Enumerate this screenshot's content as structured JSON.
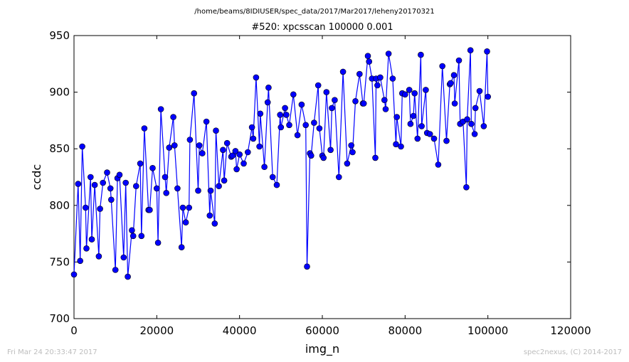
{
  "header": {
    "file_path": "/home/beams/8IDIUSER/spec_data/2017/Mar2017/leheny20170321"
  },
  "footer": {
    "timestamp": "Fri Mar 24 20:33:47 2017",
    "credit": "spec2nexus, (C) 2014-2017"
  },
  "chart_data": {
    "type": "line",
    "title": "#520: xpcsscan 100000 0.001",
    "xlabel": "img_n",
    "ylabel": "ccdc",
    "xlim": [
      0,
      120000
    ],
    "ylim": [
      700,
      950
    ],
    "xticks": [
      "0",
      "20000",
      "40000",
      "60000",
      "80000",
      "100000",
      "120000"
    ],
    "yticks": [
      "700",
      "750",
      "800",
      "850",
      "900",
      "950"
    ],
    "grid": false,
    "legend": "none",
    "line_color": "#0000ff",
    "marker": "circle",
    "x": [
      0,
      1000,
      2000,
      3000,
      4000,
      5000,
      6000,
      7000,
      8000,
      9000,
      10000,
      11000,
      12000,
      13000,
      14000,
      15000,
      16000,
      17000,
      18000,
      19000,
      20000,
      21000,
      22000,
      23000,
      24000,
      25000,
      26000,
      27000,
      28000,
      29000,
      30000,
      31000,
      32000,
      33000,
      34000,
      35000,
      36000,
      37000,
      38000,
      39000,
      40000,
      41000,
      42000,
      43000,
      44000,
      45000,
      46000,
      47000,
      48000,
      49000,
      50000,
      51000,
      52000,
      53000,
      54000,
      55000,
      56000,
      57000,
      58000,
      59000,
      60000,
      61000,
      62000,
      63000,
      64000,
      65000,
      66000,
      67000,
      68000,
      69000,
      70000,
      71000,
      72000,
      73000,
      74000,
      75000,
      76000,
      77000,
      78000,
      79000,
      80000,
      81000,
      82000,
      83000,
      84000,
      85000,
      86000,
      87000,
      88000,
      89000,
      90000,
      91000,
      92000,
      93000,
      94000,
      95000,
      96000,
      97000,
      98000,
      99000,
      100000
    ],
    "values": [
      739,
      819,
      852,
      762,
      825,
      818,
      755,
      820,
      829,
      805,
      743,
      827,
      754,
      737,
      778,
      817,
      837,
      868,
      796,
      833,
      815,
      885,
      825,
      851,
      878,
      815,
      763,
      785,
      858,
      899,
      813,
      846,
      874,
      813,
      784,
      817,
      849,
      855,
      843,
      848,
      845,
      837,
      847,
      869,
      913,
      881,
      834,
      904,
      825,
      818,
      869,
      886,
      871,
      898,
      862,
      889,
      871,
      846,
      873,
      906,
      844,
      900,
      849,
      893,
      825,
      918,
      837,
      853,
      892,
      916,
      890,
      932,
      912,
      912,
      913,
      893,
      934,
      912,
      878,
      852,
      898,
      902,
      879,
      859,
      870,
      902,
      863,
      859,
      836,
      923,
      857,
      908,
      890,
      928,
      874,
      876,
      872,
      886,
      901,
      870,
      896
    ],
    "x_extra": [
      1500,
      2800,
      4300,
      6300,
      8800,
      10500,
      12500,
      14300,
      16300,
      18300,
      20300,
      22300,
      24300,
      26300,
      27800,
      30300,
      32800,
      34300,
      36300,
      38300,
      39300,
      43300,
      44800,
      46800,
      49800,
      51300,
      56300,
      57300,
      59300,
      60300,
      62300,
      67300,
      69800,
      71300,
      72800,
      73300,
      75300,
      77800,
      79300,
      81300,
      82300,
      83800,
      85300,
      90800,
      91800,
      93300,
      94800,
      95800,
      96800,
      99800
    ],
    "values_extra": [
      751,
      798,
      770,
      797,
      815,
      824,
      820,
      773,
      773,
      796,
      767,
      811,
      853,
      798,
      798,
      853,
      791,
      866,
      822,
      844,
      832,
      859,
      852,
      891,
      880,
      880,
      746,
      844,
      868,
      842,
      886,
      847,
      890,
      927,
      842,
      906,
      885,
      854,
      899,
      872,
      899,
      933,
      864,
      907,
      915,
      872,
      816,
      937,
      863,
      936
    ]
  }
}
